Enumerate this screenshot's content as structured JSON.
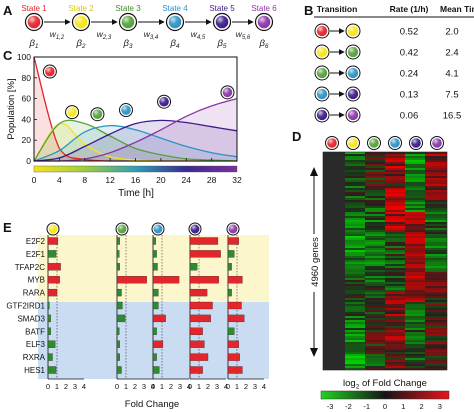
{
  "panel_letters": {
    "a": "A",
    "b": "B",
    "c": "C",
    "d": "D",
    "e": "E"
  },
  "state_colors": [
    "#e3262b",
    "#f6e614",
    "#55a13b",
    "#2d93c6",
    "#3b1b8a",
    "#8b36a8"
  ],
  "panel_a": {
    "state_labels": [
      "State 1",
      "State 2",
      "State 3",
      "State 4",
      "State 5",
      "State 6"
    ],
    "beta_labels": [
      "β",
      "β",
      "β",
      "β",
      "β",
      "β"
    ],
    "beta_subs": [
      "1",
      "2",
      "3",
      "4",
      "5",
      "6"
    ],
    "w_labels": [
      "w",
      "w",
      "w",
      "w",
      "w"
    ],
    "w_subs": [
      "1,2",
      "2,3",
      "3,4",
      "4,5",
      "5,6"
    ]
  },
  "panel_b": {
    "headers": {
      "transition": "Transition",
      "rate": "Rate (1/h)",
      "mean_time": "Mean Time (h)"
    },
    "rows": [
      {
        "rate": "0.52",
        "mean_time": "2.0"
      },
      {
        "rate": "0.42",
        "mean_time": "2.4"
      },
      {
        "rate": "0.24",
        "mean_time": "4.1"
      },
      {
        "rate": "0.13",
        "mean_time": "7.5"
      },
      {
        "rate": "0.06",
        "mean_time": "16.5"
      }
    ]
  },
  "panel_c": {
    "ylabel": "Population [%]",
    "xlabel": "Time [h]",
    "x_ticks": [
      "0",
      "4",
      "8",
      "12",
      "16",
      "20",
      "24",
      "28",
      "32"
    ],
    "y_ticks": [
      "0",
      "20",
      "40",
      "60",
      "80",
      "100"
    ]
  },
  "panel_d": {
    "genes_label": "4960 genes",
    "colorbar_label": "log",
    "colorbar_sub": "2",
    "colorbar_suffix": " of Fold Change",
    "colorbar_ticks": [
      "-3",
      "-2",
      "-1",
      "0",
      "1",
      "2",
      "3"
    ]
  },
  "panel_e": {
    "genes": [
      "E2F2",
      "E2F1",
      "TFAP2C",
      "MYB",
      "RARA",
      "GTF2IRD1",
      "SMAD3",
      "BATF",
      "ELF3",
      "RXRA",
      "HES1"
    ],
    "x_ticks": [
      "0",
      "1",
      "2",
      "3",
      "4"
    ],
    "xlabel": "Fold Change",
    "top_band_color": "#fbf6cc",
    "bottom_band_color": "#c9dcf2"
  },
  "chart_data": [
    {
      "type": "line",
      "title": "",
      "xlabel": "Time [h]",
      "ylabel": "Population [%]",
      "xlim": [
        0,
        32
      ],
      "ylim": [
        0,
        100
      ],
      "x": [
        0,
        4,
        8,
        12,
        16,
        20,
        24,
        28,
        32
      ],
      "series": [
        {
          "values": [
            100,
            12,
            1.5,
            0,
            0,
            0,
            0,
            0,
            0
          ]
        },
        {
          "values": [
            0,
            36,
            16,
            4,
            1,
            0,
            0,
            0,
            0
          ]
        },
        {
          "values": [
            0,
            36,
            36,
            24,
            12,
            6,
            2,
            1,
            0
          ]
        },
        {
          "values": [
            0,
            10,
            28,
            34,
            30,
            22,
            14,
            8,
            4
          ]
        },
        {
          "values": [
            0,
            3,
            14,
            26,
            36,
            39,
            37,
            33,
            29
          ]
        },
        {
          "values": [
            0,
            0,
            2,
            8,
            18,
            30,
            43,
            53,
            60
          ]
        }
      ]
    },
    {
      "type": "table",
      "headers": [
        "Transition",
        "Rate (1/h)",
        "Mean Time (h)"
      ],
      "rows": [
        [
          "1→2",
          "0.52",
          "2.0"
        ],
        [
          "2→3",
          "0.42",
          "2.4"
        ],
        [
          "3→4",
          "0.24",
          "4.1"
        ],
        [
          "4→5",
          "0.13",
          "7.5"
        ],
        [
          "5→6",
          "0.06",
          "16.5"
        ]
      ]
    },
    {
      "type": "bar",
      "orientation": "horizontal",
      "xlabel": "Fold Change",
      "xlim": [
        0,
        4
      ],
      "categories": [
        "E2F2",
        "E2F1",
        "TFAP2C",
        "MYB",
        "RARA",
        "GTF2IRD1",
        "SMAD3",
        "BATF",
        "ELF3",
        "RXRA",
        "HES1"
      ],
      "reference_line": 1,
      "series": [
        {
          "values": [
            1.1,
            0.9,
            1.4,
            1.3,
            1.0,
            0.15,
            0.3,
            0.3,
            0.8,
            0.5,
            0.9
          ]
        },
        {
          "values": [
            0.3,
            0.25,
            0.3,
            3.3,
            0.5,
            0.6,
            0.9,
            0.25,
            0.3,
            0.3,
            0.5
          ]
        },
        {
          "values": [
            0.3,
            0.4,
            0.5,
            2.9,
            0.6,
            0.6,
            1.4,
            0.4,
            1.1,
            0.4,
            0.7
          ]
        },
        {
          "values": [
            3.1,
            3.4,
            0.8,
            3.2,
            1.9,
            2.5,
            2.3,
            1.4,
            1.6,
            2.0,
            1.4
          ]
        },
        {
          "values": [
            1.2,
            0.7,
            0.4,
            1.6,
            0.4,
            1.5,
            1.8,
            0.7,
            1.2,
            1.3,
            1.6
          ]
        }
      ]
    },
    {
      "type": "heatmap",
      "rows_label": "4960 genes",
      "columns": 6,
      "colorbar": [
        -3,
        -2,
        -1,
        0,
        1,
        2,
        3
      ]
    }
  ]
}
